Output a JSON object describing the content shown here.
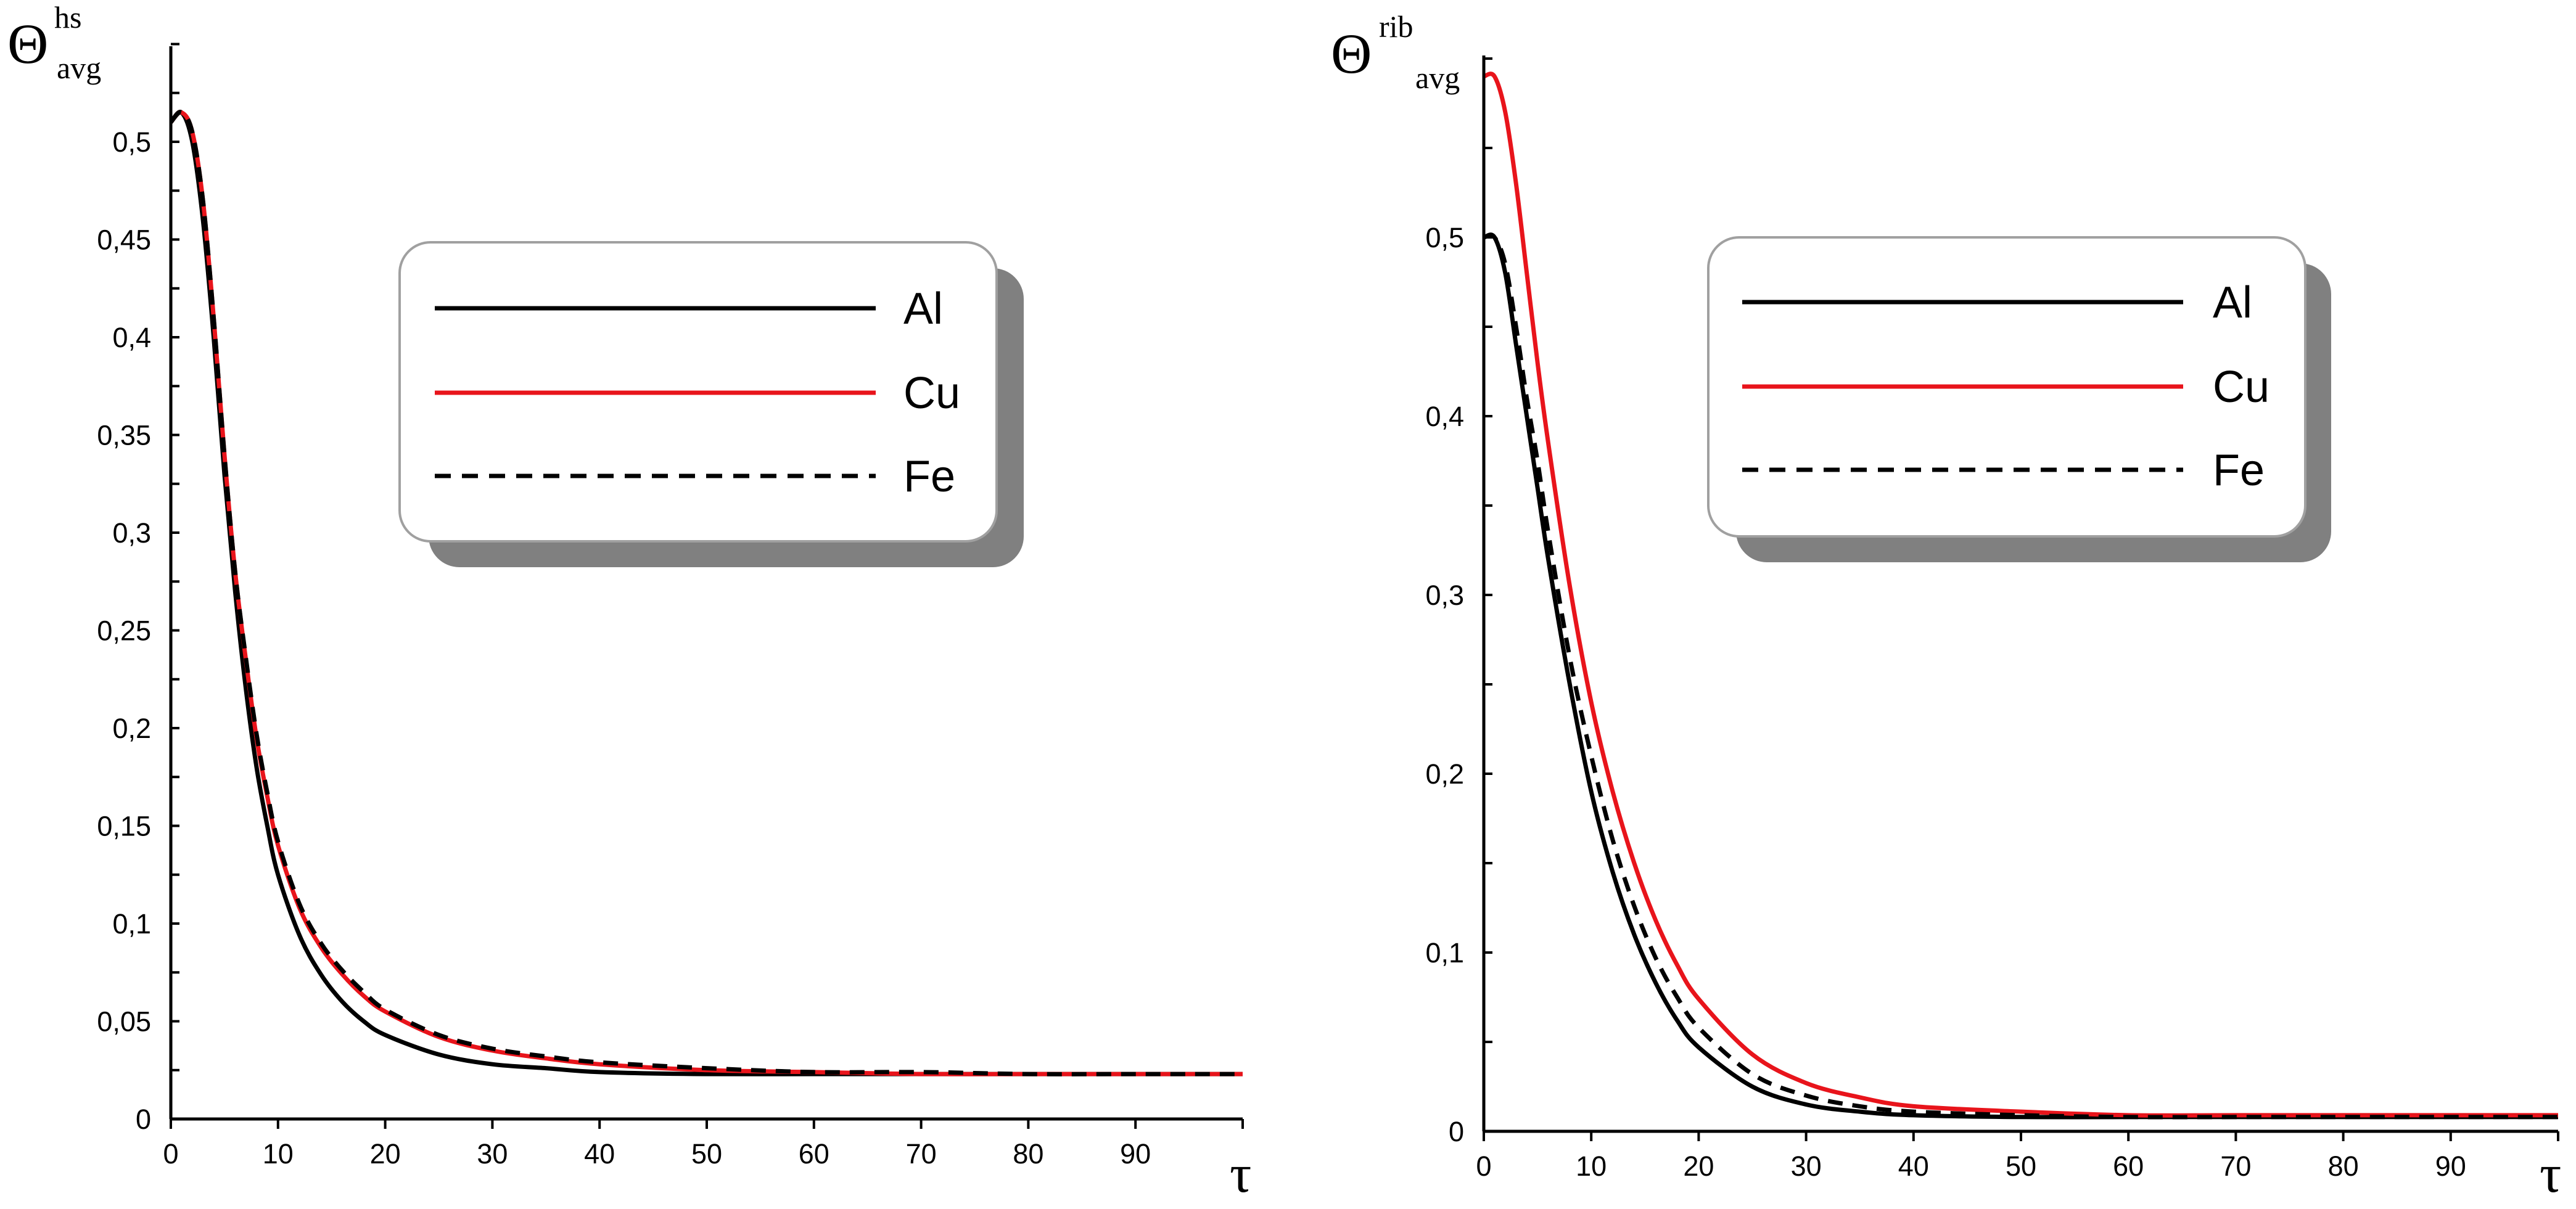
{
  "chart_data": [
    {
      "type": "line",
      "ylabel_symbol": "Θ",
      "ylabel_sup": "hs",
      "ylabel_sub": "avg",
      "xlabel": "τ",
      "xlim": [
        0,
        100
      ],
      "ylim": [
        0,
        0.55
      ],
      "x_ticks": [
        0,
        10,
        20,
        30,
        40,
        50,
        60,
        70,
        80,
        90
      ],
      "x_tick_labels": [
        "0",
        "10",
        "20",
        "30",
        "40",
        "50",
        "60",
        "70",
        "80",
        "90"
      ],
      "y_ticks": [
        0,
        0.05,
        0.1,
        0.15,
        0.2,
        0.25,
        0.3,
        0.35,
        0.4,
        0.45,
        0.5
      ],
      "y_tick_labels": [
        "0",
        "0,05",
        "0,1",
        "0,15",
        "0,2",
        "0,25",
        "0,3",
        "0,35",
        "0,4",
        "0,45",
        "0,5"
      ],
      "legend": {
        "placement": "top-center"
      },
      "series": [
        {
          "name": "Al",
          "color": "#000000",
          "style": "solid",
          "x": [
            0,
            1,
            2,
            3,
            4,
            5,
            6,
            7,
            8,
            9,
            10,
            12,
            14,
            16,
            18,
            20,
            25,
            30,
            35,
            40,
            50,
            60,
            70,
            80,
            90,
            100
          ],
          "y": [
            0.51,
            0.515,
            0.5,
            0.46,
            0.4,
            0.33,
            0.27,
            0.22,
            0.18,
            0.15,
            0.125,
            0.094,
            0.074,
            0.06,
            0.05,
            0.043,
            0.033,
            0.028,
            0.026,
            0.024,
            0.023,
            0.023,
            0.023,
            0.023,
            0.023,
            0.023
          ]
        },
        {
          "name": "Cu",
          "color": "#e8141b",
          "style": "solid",
          "x": [
            0,
            1,
            2,
            3,
            4,
            5,
            6,
            7,
            8,
            9,
            10,
            12,
            14,
            16,
            18,
            20,
            25,
            30,
            35,
            40,
            50,
            60,
            70,
            80,
            90,
            100
          ],
          "y": [
            0.51,
            0.515,
            0.505,
            0.47,
            0.41,
            0.34,
            0.28,
            0.235,
            0.195,
            0.165,
            0.14,
            0.108,
            0.088,
            0.074,
            0.063,
            0.055,
            0.042,
            0.035,
            0.031,
            0.028,
            0.025,
            0.024,
            0.023,
            0.023,
            0.023,
            0.023
          ]
        },
        {
          "name": "Fe",
          "color": "#000000",
          "style": "dashed",
          "x": [
            0,
            1,
            2,
            3,
            4,
            5,
            6,
            7,
            8,
            9,
            10,
            12,
            14,
            16,
            18,
            20,
            25,
            30,
            35,
            40,
            50,
            60,
            70,
            80,
            90,
            100
          ],
          "y": [
            0.51,
            0.515,
            0.505,
            0.47,
            0.41,
            0.34,
            0.28,
            0.236,
            0.197,
            0.167,
            0.142,
            0.11,
            0.09,
            0.076,
            0.065,
            0.056,
            0.043,
            0.036,
            0.032,
            0.029,
            0.026,
            0.024,
            0.024,
            0.023,
            0.023,
            0.023
          ]
        }
      ]
    },
    {
      "type": "line",
      "ylabel_symbol": "Θ",
      "ylabel_sup": "rib",
      "ylabel_sub": "avg",
      "xlabel": "τ",
      "xlim": [
        0,
        100
      ],
      "ylim": [
        0,
        0.6
      ],
      "x_ticks": [
        0,
        10,
        20,
        30,
        40,
        50,
        60,
        70,
        80,
        90
      ],
      "x_tick_labels": [
        "0",
        "10",
        "20",
        "30",
        "40",
        "50",
        "60",
        "70",
        "80",
        "90"
      ],
      "y_ticks": [
        0,
        0.1,
        0.2,
        0.3,
        0.4,
        0.5
      ],
      "y_tick_labels": [
        "0",
        "0,1",
        "0,2",
        "0,3",
        "0,4",
        "0,5"
      ],
      "legend": {
        "placement": "top-center"
      },
      "series": [
        {
          "name": "Al",
          "color": "#000000",
          "style": "solid",
          "x": [
            0,
            1,
            2,
            3,
            4,
            5,
            6,
            8,
            10,
            12,
            14,
            16,
            18,
            20,
            25,
            30,
            35,
            40,
            50,
            60,
            70,
            80,
            90,
            100
          ],
          "y": [
            0.5,
            0.5,
            0.48,
            0.44,
            0.4,
            0.36,
            0.32,
            0.25,
            0.19,
            0.145,
            0.11,
            0.083,
            0.062,
            0.047,
            0.025,
            0.015,
            0.011,
            0.009,
            0.008,
            0.008,
            0.008,
            0.008,
            0.008,
            0.008
          ]
        },
        {
          "name": "Cu",
          "color": "#e8141b",
          "style": "solid",
          "x": [
            0,
            1,
            2,
            3,
            4,
            5,
            6,
            8,
            10,
            12,
            14,
            16,
            18,
            20,
            25,
            30,
            35,
            40,
            50,
            60,
            70,
            80,
            90,
            100
          ],
          "y": [
            0.59,
            0.59,
            0.57,
            0.53,
            0.48,
            0.43,
            0.385,
            0.305,
            0.24,
            0.19,
            0.15,
            0.118,
            0.093,
            0.074,
            0.043,
            0.027,
            0.019,
            0.014,
            0.011,
            0.009,
            0.009,
            0.009,
            0.009,
            0.009
          ]
        },
        {
          "name": "Fe",
          "color": "#000000",
          "style": "dashed",
          "x": [
            0,
            1,
            2,
            3,
            4,
            5,
            6,
            8,
            10,
            12,
            14,
            16,
            18,
            20,
            25,
            30,
            35,
            40,
            50,
            60,
            70,
            80,
            90,
            100
          ],
          "y": [
            0.5,
            0.5,
            0.485,
            0.45,
            0.41,
            0.375,
            0.335,
            0.265,
            0.21,
            0.163,
            0.126,
            0.097,
            0.075,
            0.058,
            0.032,
            0.02,
            0.014,
            0.011,
            0.009,
            0.008,
            0.008,
            0.008,
            0.008,
            0.008
          ]
        }
      ]
    }
  ]
}
